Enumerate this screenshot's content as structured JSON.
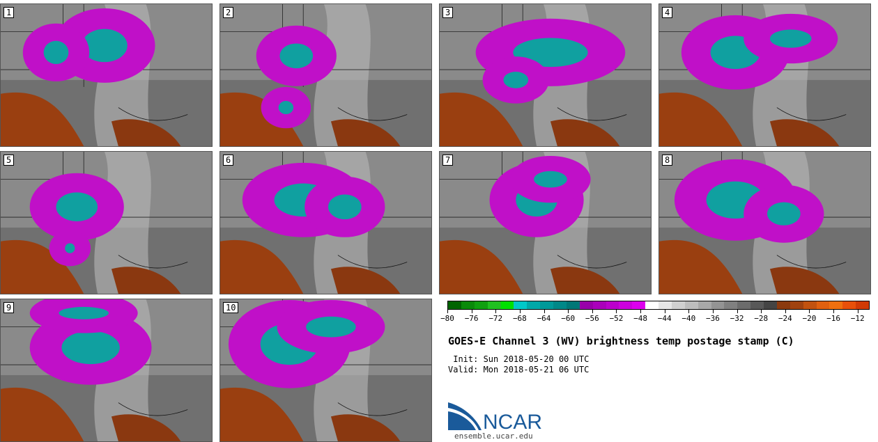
{
  "panels": [
    {
      "label": "1"
    },
    {
      "label": "2"
    },
    {
      "label": "3"
    },
    {
      "label": "4"
    },
    {
      "label": "5"
    },
    {
      "label": "6"
    },
    {
      "label": "7"
    },
    {
      "label": "8"
    },
    {
      "label": "9"
    },
    {
      "label": "10"
    }
  ],
  "colorbar": {
    "colors": [
      "#006400",
      "#0a8a0a",
      "#10a010",
      "#20c020",
      "#00e000",
      "#00c8c8",
      "#00a8a8",
      "#009999",
      "#008888",
      "#007777",
      "#9900aa",
      "#aa00bb",
      "#bb00cc",
      "#cc00dd",
      "#dd00ee",
      "#ffffff",
      "#e6e6e6",
      "#d0d0d0",
      "#bdbdbd",
      "#a8a8a8",
      "#949494",
      "#808080",
      "#6c6c6c",
      "#585858",
      "#444444",
      "#8b3a0f",
      "#a0420f",
      "#c2520f",
      "#e0600f",
      "#f0700f",
      "#e8500a",
      "#d03a05"
    ],
    "tick_labels": [
      "-80",
      "-76",
      "-72",
      "-68",
      "-64",
      "-60",
      "-56",
      "-52",
      "-48",
      "-44",
      "-40",
      "-36",
      "-32",
      "-28",
      "-24",
      "-20",
      "-16",
      "-12"
    ],
    "range": [
      -80,
      -10
    ]
  },
  "title": "GOES-E Channel 3 (WV) brightness temp postage stamp (C)",
  "init": " Init: Sun 2018-05-20 00 UTC",
  "valid": "Valid: Mon 2018-05-21 06 UTC",
  "logo_text": "NCAR",
  "url": "ensemble.ucar.edu"
}
